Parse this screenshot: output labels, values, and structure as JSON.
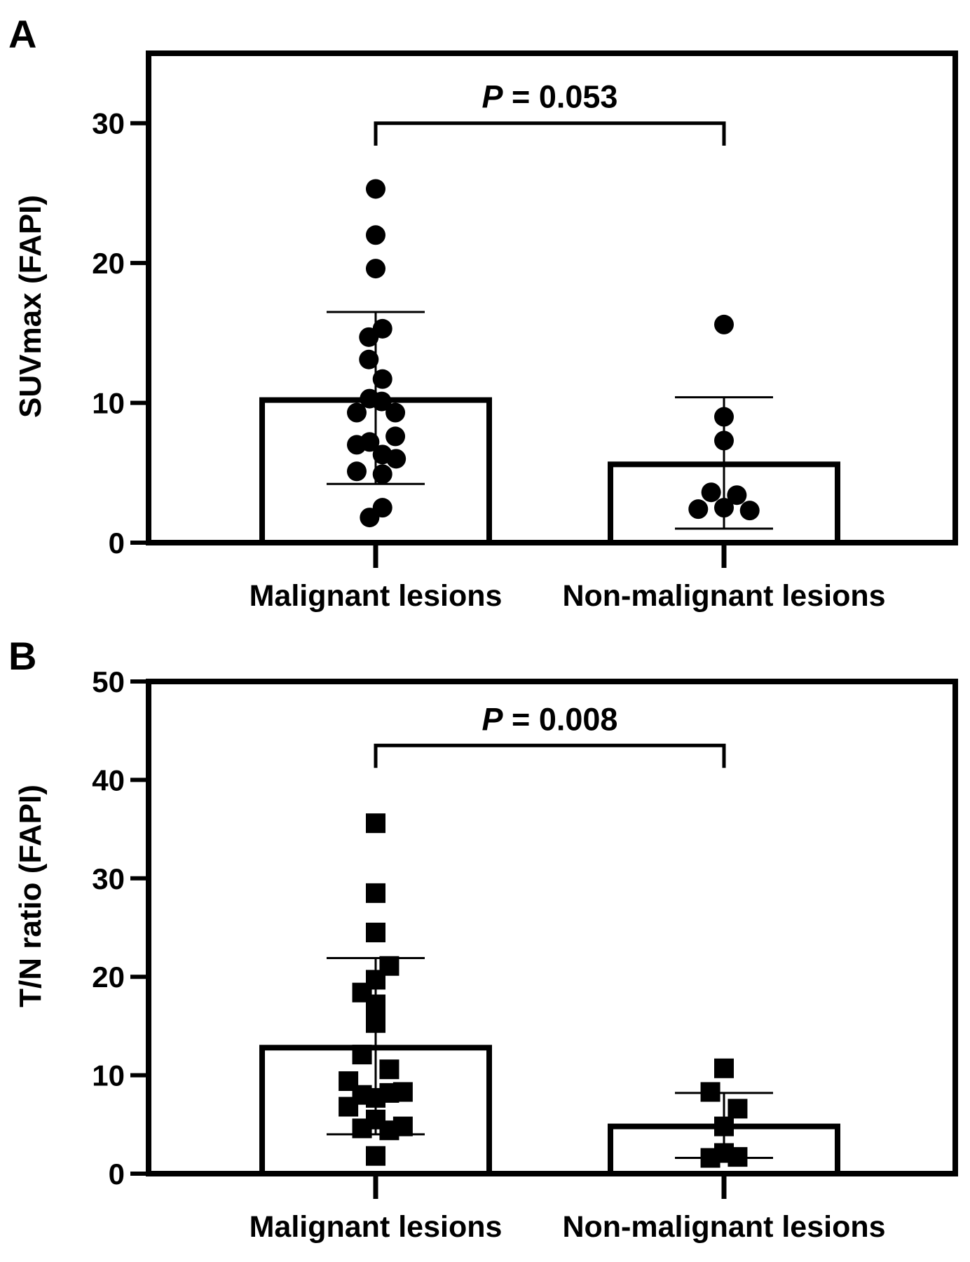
{
  "colors": {
    "ink": "#000000",
    "background": "#ffffff"
  },
  "chart_data": [
    {
      "panel_label": "A",
      "type": "bar",
      "overlay": "scatter",
      "marker": "circle",
      "categories": [
        "Malignant lesions",
        "Non-malignant lesions"
      ],
      "ylabel": "SUVmax (FAPI)",
      "ylim": [
        0,
        35
      ],
      "yticks": [
        0,
        10,
        20,
        30
      ],
      "bars": [
        {
          "category": "Malignant lesions",
          "mean": 10.2,
          "error_low": 4.2,
          "error_high": 16.5
        },
        {
          "category": "Non-malignant lesions",
          "mean": 5.6,
          "error_low": 1.0,
          "error_high": 10.4
        }
      ],
      "points": [
        [
          {
            "dx": 0.0,
            "y": 25.3
          },
          {
            "dx": 0.0,
            "y": 22.0
          },
          {
            "dx": 0.0,
            "y": 19.6
          },
          {
            "dx": -0.09,
            "y": 14.7
          },
          {
            "dx": 0.09,
            "y": 15.3
          },
          {
            "dx": -0.09,
            "y": 13.1
          },
          {
            "dx": 0.09,
            "y": 11.7
          },
          {
            "dx": -0.08,
            "y": 10.3
          },
          {
            "dx": 0.08,
            "y": 10.1
          },
          {
            "dx": -0.25,
            "y": 9.3
          },
          {
            "dx": 0.26,
            "y": 9.3
          },
          {
            "dx": -0.25,
            "y": 7.0
          },
          {
            "dx": -0.08,
            "y": 7.2
          },
          {
            "dx": 0.26,
            "y": 7.6
          },
          {
            "dx": 0.09,
            "y": 6.3
          },
          {
            "dx": 0.27,
            "y": 6.0
          },
          {
            "dx": -0.25,
            "y": 5.1
          },
          {
            "dx": 0.09,
            "y": 4.9
          },
          {
            "dx": 0.09,
            "y": 2.5
          },
          {
            "dx": -0.08,
            "y": 1.8
          }
        ],
        [
          {
            "dx": 0.0,
            "y": 15.6
          },
          {
            "dx": 0.0,
            "y": 9.0
          },
          {
            "dx": 0.0,
            "y": 7.3
          },
          {
            "dx": -0.17,
            "y": 3.6
          },
          {
            "dx": 0.17,
            "y": 3.4
          },
          {
            "dx": -0.34,
            "y": 2.4
          },
          {
            "dx": 0.0,
            "y": 2.5
          },
          {
            "dx": 0.34,
            "y": 2.3
          }
        ]
      ],
      "comparison": {
        "p_italic": "P",
        "p_rest": " = 0.053",
        "y": 30.0
      }
    },
    {
      "panel_label": "B",
      "type": "bar",
      "overlay": "scatter",
      "marker": "square",
      "categories": [
        "Malignant lesions",
        "Non-malignant lesions"
      ],
      "ylabel": "T/N ratio (FAPI)",
      "ylim": [
        0,
        50
      ],
      "yticks": [
        0,
        10,
        20,
        30,
        40,
        50
      ],
      "bars": [
        {
          "category": "Malignant lesions",
          "mean": 12.8,
          "error_low": 4.0,
          "error_high": 21.9
        },
        {
          "category": "Non-malignant lesions",
          "mean": 4.8,
          "error_low": 1.6,
          "error_high": 8.2
        }
      ],
      "points": [
        [
          {
            "dx": 0.0,
            "y": 35.6
          },
          {
            "dx": 0.0,
            "y": 28.5
          },
          {
            "dx": 0.0,
            "y": 24.5
          },
          {
            "dx": 0.18,
            "y": 21.1
          },
          {
            "dx": 0.0,
            "y": 19.7
          },
          {
            "dx": -0.18,
            "y": 18.4
          },
          {
            "dx": 0.0,
            "y": 17.2
          },
          {
            "dx": 0.0,
            "y": 15.3
          },
          {
            "dx": -0.18,
            "y": 12.1
          },
          {
            "dx": 0.18,
            "y": 10.6
          },
          {
            "dx": -0.36,
            "y": 9.4
          },
          {
            "dx": -0.18,
            "y": 8.0
          },
          {
            "dx": 0.0,
            "y": 7.7
          },
          {
            "dx": 0.18,
            "y": 8.2
          },
          {
            "dx": 0.36,
            "y": 8.3
          },
          {
            "dx": -0.36,
            "y": 6.8
          },
          {
            "dx": 0.0,
            "y": 5.5
          },
          {
            "dx": -0.18,
            "y": 4.6
          },
          {
            "dx": 0.18,
            "y": 4.4
          },
          {
            "dx": 0.36,
            "y": 4.8
          },
          {
            "dx": 0.0,
            "y": 1.8
          }
        ],
        [
          {
            "dx": 0.0,
            "y": 10.7
          },
          {
            "dx": -0.18,
            "y": 8.3
          },
          {
            "dx": 0.18,
            "y": 6.6
          },
          {
            "dx": 0.0,
            "y": 4.8
          },
          {
            "dx": 0.0,
            "y": 2.1
          },
          {
            "dx": -0.18,
            "y": 1.6
          },
          {
            "dx": 0.18,
            "y": 1.7
          }
        ]
      ],
      "comparison": {
        "p_italic": "P",
        "p_rest": " = 0.008",
        "y": 43.5
      }
    }
  ]
}
